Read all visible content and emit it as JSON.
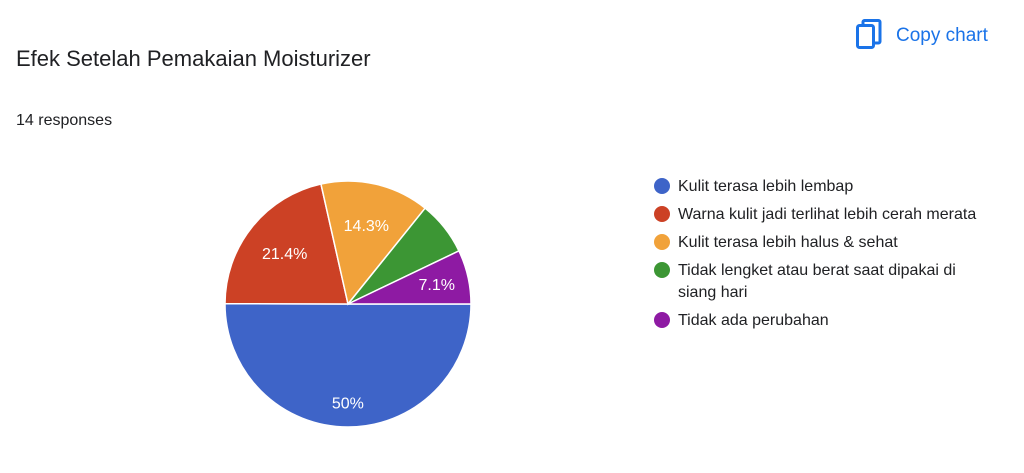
{
  "header": {
    "title": "Efek Setelah Pemakaian Moisturizer",
    "responses": "14 responses",
    "copy_chart_label": "Copy chart",
    "copy_icon": "copy-icon",
    "accent_color": "#1a73e8"
  },
  "chart_data": {
    "type": "pie",
    "title": "Efek Setelah Pemakaian Moisturizer",
    "total_responses": 14,
    "slices": [
      {
        "label": "Kulit terasa lebih lembap",
        "value": 50,
        "display": "50%",
        "color": "#3e64c8"
      },
      {
        "label": "Warna kulit jadi terlihat lebih cerah merata",
        "value": 21.4,
        "display": "21.4%",
        "color": "#cc4125"
      },
      {
        "label": "Kulit terasa lebih halus & sehat",
        "value": 14.3,
        "display": "14.3%",
        "color": "#f1a23a"
      },
      {
        "label": "Tidak lengket atau berat saat dipakai di siang hari",
        "value": 7.1,
        "display": "",
        "color": "#3c9634"
      },
      {
        "label": "Tidak ada perubahan",
        "value": 7.1,
        "display": "7.1%",
        "color": "#8e1aa3"
      }
    ],
    "legend_position": "right"
  }
}
